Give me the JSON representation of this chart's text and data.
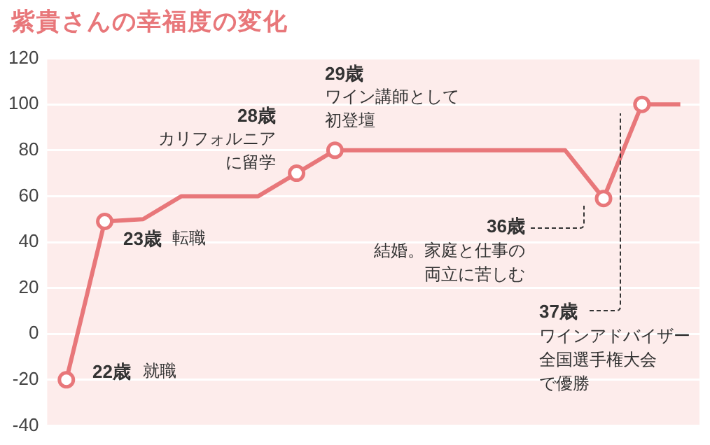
{
  "chart_data": {
    "type": "line",
    "title": "紫貴さんの幸福度の変化",
    "categories": [
      null,
      null,
      null,
      null,
      null,
      null,
      null,
      null,
      null,
      null,
      null,
      null,
      null,
      null,
      null,
      null,
      null
    ],
    "series": [
      {
        "color": "#e8777a",
        "marker": "none",
        "values": [
          -20,
          49,
          50,
          60,
          60,
          60,
          70,
          80,
          80,
          80,
          80,
          80,
          80,
          80,
          59,
          100,
          100
        ]
      },
      {
        "type": "scatter",
        "color": "#e8777a",
        "marker": "circle",
        "values": [
          -20,
          49,
          null,
          null,
          null,
          null,
          70,
          80,
          null,
          null,
          null,
          null,
          null,
          null,
          59,
          100,
          null
        ]
      }
    ],
    "ylim": [
      -40,
      120
    ],
    "yticks": [
      -40,
      -20,
      0,
      20,
      40,
      60,
      80,
      100,
      120
    ],
    "grid": "y",
    "tick_labels": "y",
    "legend": false,
    "annotations": [
      "22歳",
      "就職",
      "23歳",
      "転職",
      "28歳",
      "カリフォルニアに留学",
      "29歳",
      "ワイン講師として初登壇",
      "36歳",
      "結婚。家庭と仕事の両立に苦しむ",
      "37歳",
      "ワインアドバイザー全国選手権大会で優勝"
    ]
  }
}
